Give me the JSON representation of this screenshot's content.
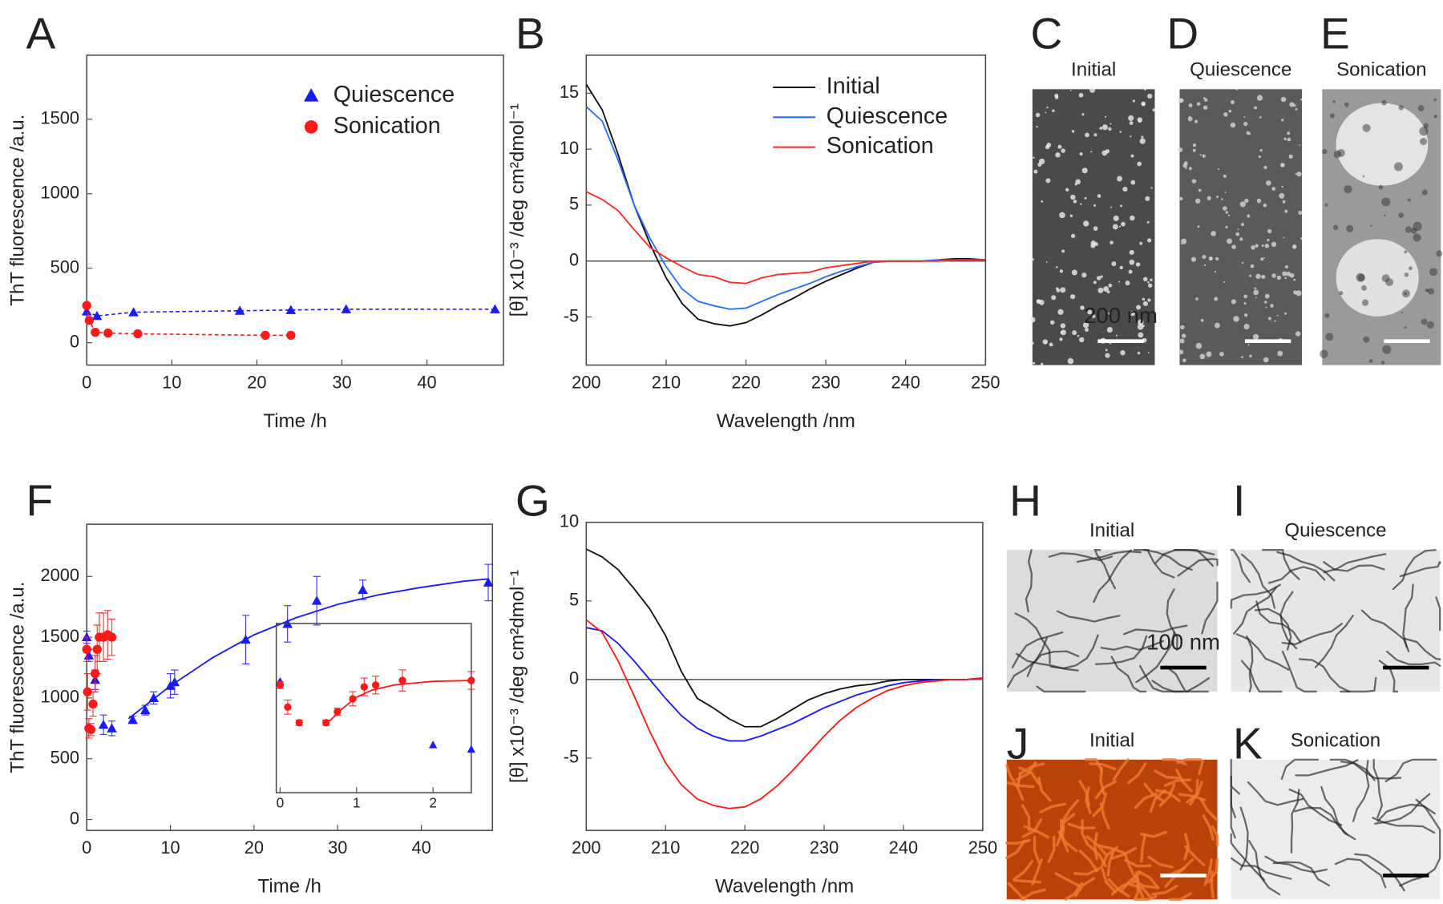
{
  "chart_data": [
    {
      "type": "line",
      "label": "A",
      "xlabel": "Time /h",
      "ylabel": "ThT fluorescence /a.u.",
      "xlim": [
        0,
        49
      ],
      "ylim": [
        -150,
        1930
      ],
      "xticks": [
        0,
        10,
        20,
        30,
        40
      ],
      "yticks": [
        0,
        500,
        1000,
        1500
      ],
      "legend": "upper right",
      "line_style": "dashed",
      "series": [
        {
          "name": "Quiescence",
          "color": "#1a1aff",
          "marker": "triangle",
          "x": [
            0,
            1.2,
            5.5,
            18,
            24,
            30.5,
            48
          ],
          "values": [
            210,
            180,
            205,
            215,
            220,
            225,
            225
          ]
        },
        {
          "name": "Sonication",
          "color": "#ff1a1a",
          "marker": "circle",
          "x": [
            0,
            0.3,
            1,
            2.5,
            6,
            21,
            24
          ],
          "values": [
            250,
            150,
            70,
            65,
            60,
            50,
            50
          ]
        }
      ]
    },
    {
      "type": "line",
      "label": "B",
      "xlabel": "Wavelength /nm",
      "ylabel": "[θ] x10⁻³ /deg cm²dmol⁻¹",
      "xlim": [
        200,
        250
      ],
      "ylim": [
        -9.3,
        18.4
      ],
      "xticks": [
        200,
        210,
        220,
        230,
        240,
        250
      ],
      "yticks": [
        -5,
        0,
        5,
        10,
        15
      ],
      "legend": "upper right",
      "zero_line": true,
      "x": [
        200,
        202,
        204,
        206,
        208,
        210,
        212,
        214,
        216,
        218,
        220,
        222,
        224,
        226,
        228,
        230,
        232,
        234,
        236,
        238,
        240,
        242,
        244,
        246,
        248,
        250
      ],
      "series": [
        {
          "name": "Initial",
          "color": "#111111",
          "values": [
            15.8,
            13.5,
            9.5,
            5.0,
            1.5,
            -1.5,
            -3.8,
            -5.2,
            -5.6,
            -5.8,
            -5.5,
            -4.8,
            -4.0,
            -3.3,
            -2.5,
            -1.8,
            -1.2,
            -0.6,
            -0.1,
            0,
            0,
            0,
            0.1,
            0.2,
            0.2,
            0.1
          ]
        },
        {
          "name": "Quiescence",
          "color": "#2a6cff",
          "values": [
            13.8,
            12.5,
            9.0,
            5.0,
            2.0,
            -0.5,
            -2.5,
            -3.6,
            -4.0,
            -4.3,
            -4.2,
            -3.6,
            -3.0,
            -2.5,
            -2.0,
            -1.4,
            -0.9,
            -0.5,
            -0.1,
            0,
            0,
            0,
            0.1,
            0.1,
            0.1,
            0.1
          ]
        },
        {
          "name": "Sonication",
          "color": "#ff2a2a",
          "values": [
            6.2,
            5.5,
            4.5,
            2.8,
            1.2,
            0.3,
            -0.5,
            -1.2,
            -1.4,
            -1.9,
            -2.0,
            -1.5,
            -1.2,
            -1.1,
            -1.0,
            -0.6,
            -0.4,
            -0.2,
            0,
            0,
            0,
            0,
            0,
            0.1,
            0.1,
            0.1
          ]
        }
      ]
    },
    {
      "type": "scatter",
      "label": "F",
      "xlabel": "Time /h",
      "ylabel": "ThT fluorescence /a.u.",
      "xlim": [
        0,
        48.5
      ],
      "ylim": [
        -90,
        2430
      ],
      "xticks": [
        0,
        10,
        20,
        30,
        40
      ],
      "yticks": [
        0,
        500,
        1000,
        1500,
        2000
      ],
      "series": [
        {
          "color": "#1a1aff",
          "marker": "triangle",
          "x": [
            0,
            0.25,
            1,
            2,
            3,
            5.5,
            7,
            8,
            10,
            10.5,
            19,
            24,
            27.5,
            33,
            48
          ],
          "values": [
            1500,
            1350,
            1150,
            780,
            750,
            820,
            900,
            1000,
            1100,
            1130,
            1480,
            1610,
            1800,
            1890,
            1950
          ],
          "errors": [
            50,
            50,
            80,
            80,
            60,
            30,
            40,
            50,
            100,
            100,
            200,
            150,
            200,
            80,
            150
          ]
        },
        {
          "color": "#ff1a1a",
          "marker": "circle",
          "x": [
            0,
            0.1,
            0.25,
            0.5,
            0.75,
            1,
            1.25,
            1.5,
            2,
            2.5,
            3
          ],
          "values": [
            1400,
            1050,
            750,
            740,
            950,
            1200,
            1400,
            1500,
            1500,
            1520,
            1500
          ],
          "errors": [
            100,
            150,
            80,
            50,
            100,
            150,
            200,
            200,
            200,
            200,
            150
          ]
        }
      ],
      "fits": [
        {
          "color": "#1a1aff",
          "x": [
            5,
            10,
            15,
            20,
            25,
            30,
            35,
            40,
            45,
            48
          ],
          "values": [
            830,
            1100,
            1330,
            1520,
            1660,
            1770,
            1850,
            1910,
            1960,
            1980
          ]
        }
      ],
      "inset": {
        "xlim": [
          -0.05,
          2.5
        ],
        "ylim": [
          238,
          2155
        ],
        "xticks": [
          0,
          1,
          2
        ],
        "series": [
          {
            "color": "#1a1aff",
            "marker": "triangle",
            "x": [
              0,
              2,
              2.5
            ],
            "values": [
              1500,
              780,
              730
            ]
          },
          {
            "color": "#ff1a1a",
            "marker": "circle",
            "x": [
              0,
              0.1,
              0.25,
              0.6,
              0.75,
              0.95,
              1.1,
              1.25,
              1.6,
              2.5
            ],
            "values": [
              1458,
              1208,
              1031,
              1031,
              1156,
              1302,
              1437,
              1458,
              1510,
              1510
            ],
            "errors": [
              40,
              80,
              30,
              30,
              40,
              80,
              100,
              100,
              120,
              100
            ]
          }
        ],
        "fits": [
          {
            "color": "#ff1a1a",
            "x": [
              0.6,
              0.8,
              1,
              1.2,
              1.5,
              2,
              2.5
            ],
            "values": [
              1010,
              1180,
              1320,
              1400,
              1460,
              1500,
              1510
            ]
          }
        ]
      }
    },
    {
      "type": "line",
      "label": "G",
      "xlabel": "Wavelength /nm",
      "ylabel": "[θ] x10⁻³ /deg cm²dmol⁻¹",
      "xlim": [
        200,
        250
      ],
      "ylim": [
        -9.6,
        10
      ],
      "xticks": [
        200,
        210,
        220,
        230,
        240,
        250
      ],
      "yticks": [
        -5,
        0,
        5,
        10
      ],
      "zero_line": true,
      "x": [
        200,
        202,
        204,
        206,
        208,
        210,
        212,
        214,
        216,
        218,
        220,
        222,
        224,
        226,
        228,
        230,
        232,
        234,
        236,
        238,
        240,
        242,
        244,
        246,
        248,
        250
      ],
      "series": [
        {
          "color": "#111111",
          "values": [
            8.3,
            7.8,
            7.0,
            5.8,
            4.5,
            2.8,
            0.5,
            -1.2,
            -1.8,
            -2.5,
            -3.0,
            -3.0,
            -2.5,
            -1.9,
            -1.3,
            -0.9,
            -0.6,
            -0.4,
            -0.3,
            -0.1,
            0,
            0,
            0,
            0,
            0,
            0.1
          ]
        },
        {
          "color": "#1a1aff",
          "values": [
            3.3,
            3.1,
            2.3,
            1.2,
            0,
            -1.2,
            -2.3,
            -3.1,
            -3.6,
            -3.9,
            -3.9,
            -3.6,
            -3.2,
            -2.8,
            -2.3,
            -1.8,
            -1.4,
            -1.0,
            -0.7,
            -0.4,
            -0.2,
            -0.1,
            0,
            0,
            0,
            0.1
          ]
        },
        {
          "color": "#ff1a1a",
          "values": [
            3.8,
            3.0,
            1.2,
            -1.0,
            -3.3,
            -5.3,
            -6.7,
            -7.6,
            -8.0,
            -8.2,
            -8.1,
            -7.6,
            -6.8,
            -5.8,
            -4.7,
            -3.6,
            -2.6,
            -1.8,
            -1.2,
            -0.7,
            -0.4,
            -0.2,
            -0.1,
            0,
            0,
            0.1
          ]
        }
      ]
    }
  ],
  "micrographs": [
    {
      "label": "C",
      "title": "Initial",
      "scale_bar": "200 nm"
    },
    {
      "label": "D",
      "title": "Quiescence"
    },
    {
      "label": "E",
      "title": "Sonication"
    },
    {
      "label": "H",
      "title": "Initial",
      "scale_bar": "100 nm"
    },
    {
      "label": "I",
      "title": "Quiescence"
    },
    {
      "label": "J",
      "title": "Initial"
    },
    {
      "label": "K",
      "title": "Sonication"
    }
  ]
}
